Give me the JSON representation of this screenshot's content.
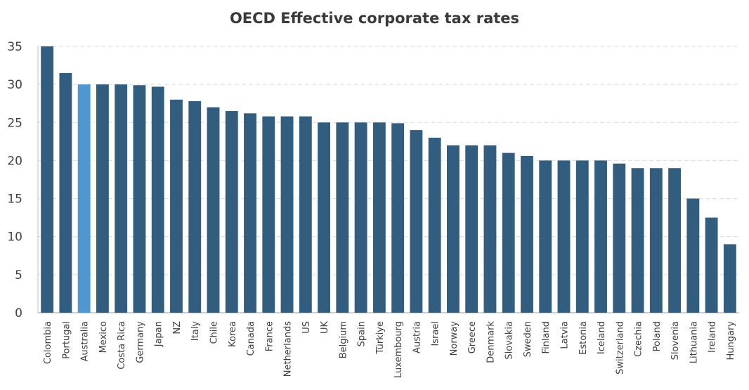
{
  "chart_data": {
    "type": "bar",
    "title": "OECD Effective corporate tax rates",
    "xlabel": "",
    "ylabel": "",
    "ylim": [
      0,
      35
    ],
    "yticks": [
      0,
      5,
      10,
      15,
      20,
      25,
      30,
      35
    ],
    "grid": true,
    "legend": "none",
    "colors": {
      "default": "#325d7f",
      "highlight": "#4f97d1",
      "grid": "#d9d9d9",
      "axis": "#bfbfbf",
      "text": "#404040"
    },
    "highlight_category": "Australia",
    "categories": [
      "Colombia",
      "Portugal",
      "Australia",
      "Mexico",
      "Costa Rica",
      "Germany",
      "Japan",
      "NZ",
      "Italy",
      "Chile",
      "Korea",
      "Canada",
      "France",
      "Netherlands",
      "US",
      "UK",
      "Belgium",
      "Spain",
      "Türkiye",
      "Luxembourg",
      "Austria",
      "Israel",
      "Norway",
      "Greece",
      "Denmark",
      "Slovakia",
      "Sweden",
      "Finland",
      "Latvia",
      "Estonia",
      "Iceland",
      "Switzerland",
      "Czechia",
      "Poland",
      "Slovenia",
      "Lithuania",
      "Ireland",
      "Hungary"
    ],
    "values": [
      35,
      31.5,
      30,
      30,
      30,
      29.9,
      29.7,
      28,
      27.8,
      27,
      26.5,
      26.2,
      25.8,
      25.8,
      25.8,
      25,
      25,
      25,
      25,
      24.9,
      24,
      23,
      22,
      22,
      22,
      21,
      20.6,
      20,
      20,
      20,
      20,
      19.6,
      19,
      19,
      19,
      15,
      12.5,
      9
    ]
  }
}
